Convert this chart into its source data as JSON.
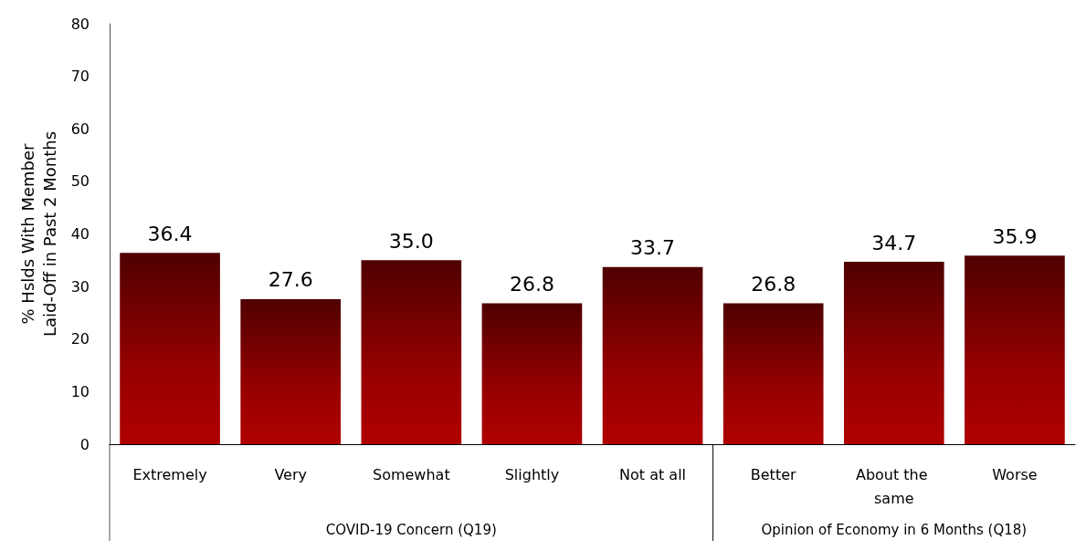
{
  "chart_data": {
    "type": "bar",
    "ylabel": "% Hslds With Member\nLaid-Off in Past 2 Months",
    "categories": [
      "Extremely",
      "Very",
      "Somewhat",
      "Slightly",
      "Not at all",
      "Better",
      "About the same",
      "Worse"
    ],
    "values": [
      36.4,
      27.6,
      35.0,
      26.8,
      33.7,
      26.8,
      34.7,
      35.9
    ],
    "color": "#b00000",
    "ylim": [
      0,
      80
    ],
    "yticks": [
      0,
      10,
      20,
      30,
      40,
      50,
      60,
      70,
      80
    ],
    "value_labels": [
      "36.4",
      "27.6",
      "35.0",
      "26.8",
      "33.7",
      "26.8",
      "34.7",
      "35.9"
    ],
    "grid": false,
    "annotations": [
      "COVID-19 Concern (Q19)",
      "Opinion of Economy in 6 Months (Q18)"
    ]
  }
}
